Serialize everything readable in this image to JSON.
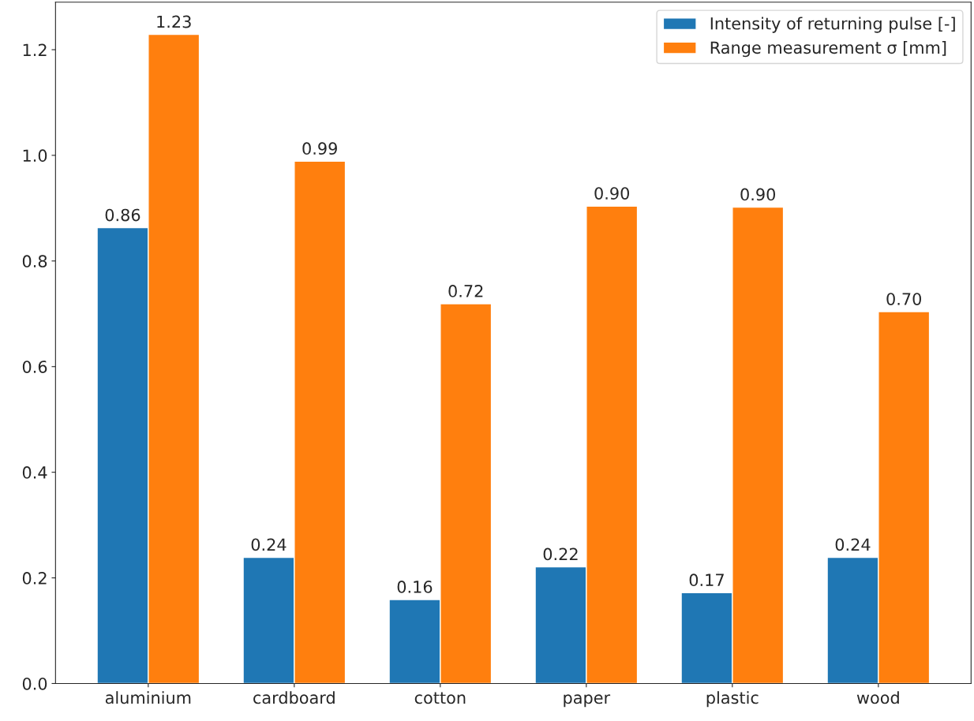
{
  "chart_data": {
    "type": "bar",
    "categories": [
      "aluminium",
      "cardboard",
      "cotton",
      "paper",
      "plastic",
      "wood"
    ],
    "series": [
      {
        "name": "Intensity of returning pulse [-]",
        "color": "#1f77b4",
        "values": [
          0.863,
          0.239,
          0.159,
          0.221,
          0.172,
          0.239
        ],
        "value_labels": [
          "0.86",
          "0.24",
          "0.16",
          "0.22",
          "0.17",
          "0.24"
        ]
      },
      {
        "name": "Range measurement σ [mm]",
        "color": "#ff7f0e",
        "values": [
          1.229,
          0.989,
          0.719,
          0.904,
          0.902,
          0.704
        ],
        "value_labels": [
          "1.23",
          "0.99",
          "0.72",
          "0.90",
          "0.90",
          "0.70"
        ]
      }
    ],
    "ylim": [
      0,
      1.29
    ],
    "yticks": [
      {
        "value": 0,
        "label": "0.0"
      },
      0.2,
      0.4,
      0.6,
      0.8,
      {
        "value": 1,
        "label": "1.0"
      },
      1.2
    ],
    "legend": "top right",
    "grid": false
  }
}
